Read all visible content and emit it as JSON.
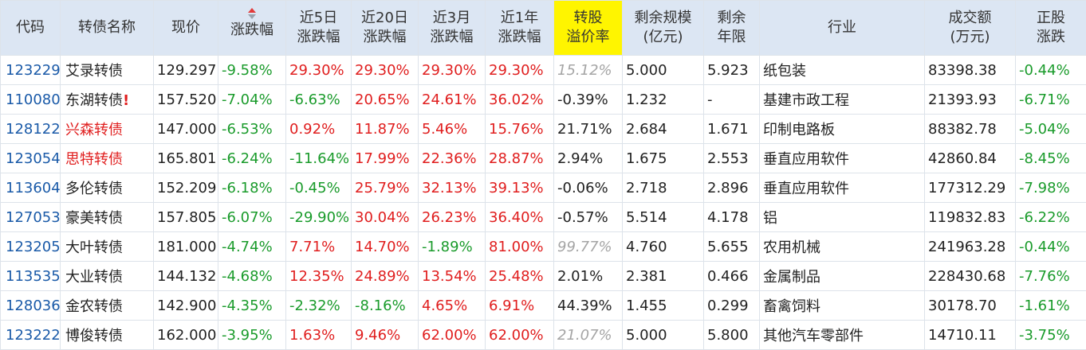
{
  "headers": {
    "code": "代码",
    "name": "转债名称",
    "price": "现价",
    "chg": "涨跌幅",
    "chg5d": [
      "近5日",
      "涨跌幅"
    ],
    "chg20d": [
      "近20日",
      "涨跌幅"
    ],
    "chg3m": [
      "近3月",
      "涨跌幅"
    ],
    "chg1y": [
      "近1年",
      "涨跌幅"
    ],
    "premium": [
      "转股",
      "溢价率"
    ],
    "scale": [
      "剩余规模",
      "(亿元)"
    ],
    "years": [
      "剩余",
      "年限"
    ],
    "industry": "行业",
    "turnover": [
      "成交额",
      "(万元)"
    ],
    "stock_chg": [
      "正股",
      "涨跌"
    ]
  },
  "rows": [
    {
      "code": "123229",
      "name": "艾录转债",
      "name_color": "normal",
      "flag": "",
      "price": "129.297",
      "chg": "-9.58%",
      "chg5d": "29.30%",
      "chg20d": "29.30%",
      "chg3m": "29.30%",
      "chg1y": "29.30%",
      "premium": "15.12%",
      "premium_style": "gray",
      "scale": "5.000",
      "years": "5.923",
      "industry": "纸包装",
      "turnover": "83398.38",
      "stock_chg": "-0.44%"
    },
    {
      "code": "110080",
      "name": "东湖转债",
      "name_color": "normal",
      "flag": "!",
      "price": "157.520",
      "chg": "-7.04%",
      "chg5d": "-6.63%",
      "chg20d": "20.65%",
      "chg3m": "24.61%",
      "chg1y": "36.02%",
      "premium": "-0.39%",
      "premium_style": "normal",
      "scale": "1.232",
      "years": "-",
      "industry": "基建市政工程",
      "turnover": "21393.93",
      "stock_chg": "-6.71%"
    },
    {
      "code": "128122",
      "name": "兴森转债",
      "name_color": "red",
      "flag": "",
      "price": "147.000",
      "chg": "-6.53%",
      "chg5d": "0.92%",
      "chg20d": "11.87%",
      "chg3m": "5.46%",
      "chg1y": "15.76%",
      "premium": "21.71%",
      "premium_style": "normal",
      "scale": "2.684",
      "years": "1.671",
      "industry": "印制电路板",
      "turnover": "88382.78",
      "stock_chg": "-5.04%"
    },
    {
      "code": "123054",
      "name": "思特转债",
      "name_color": "red",
      "flag": "",
      "price": "165.801",
      "chg": "-6.24%",
      "chg5d": "-11.64%",
      "chg20d": "17.99%",
      "chg3m": "22.36%",
      "chg1y": "28.87%",
      "premium": "2.94%",
      "premium_style": "normal",
      "scale": "1.675",
      "years": "2.553",
      "industry": "垂直应用软件",
      "turnover": "42860.84",
      "stock_chg": "-8.45%"
    },
    {
      "code": "113604",
      "name": "多伦转债",
      "name_color": "normal",
      "flag": "",
      "price": "152.209",
      "chg": "-6.18%",
      "chg5d": "-0.45%",
      "chg20d": "25.79%",
      "chg3m": "32.13%",
      "chg1y": "39.13%",
      "premium": "-0.06%",
      "premium_style": "normal",
      "scale": "2.718",
      "years": "2.896",
      "industry": "垂直应用软件",
      "turnover": "177312.29",
      "stock_chg": "-7.98%"
    },
    {
      "code": "127053",
      "name": "豪美转债",
      "name_color": "normal",
      "flag": "",
      "price": "157.805",
      "chg": "-6.07%",
      "chg5d": "-29.90%",
      "chg20d": "30.04%",
      "chg3m": "26.23%",
      "chg1y": "36.40%",
      "premium": "-0.57%",
      "premium_style": "normal",
      "scale": "5.514",
      "years": "4.178",
      "industry": "铝",
      "turnover": "119832.83",
      "stock_chg": "-6.22%"
    },
    {
      "code": "123205",
      "name": "大叶转债",
      "name_color": "normal",
      "flag": "",
      "price": "181.000",
      "chg": "-4.74%",
      "chg5d": "7.71%",
      "chg20d": "14.70%",
      "chg3m": "-1.89%",
      "chg1y": "81.00%",
      "premium": "99.77%",
      "premium_style": "gray",
      "scale": "4.760",
      "years": "5.655",
      "industry": "农用机械",
      "turnover": "241963.28",
      "stock_chg": "-0.44%"
    },
    {
      "code": "113535",
      "name": "大业转债",
      "name_color": "normal",
      "flag": "",
      "price": "144.132",
      "chg": "-4.68%",
      "chg5d": "12.35%",
      "chg20d": "24.89%",
      "chg3m": "13.54%",
      "chg1y": "25.48%",
      "premium": "2.01%",
      "premium_style": "normal",
      "scale": "2.381",
      "years": "0.466",
      "industry": "金属制品",
      "turnover": "228430.68",
      "stock_chg": "-7.76%"
    },
    {
      "code": "128036",
      "name": "金农转债",
      "name_color": "normal",
      "flag": "",
      "price": "142.900",
      "chg": "-4.35%",
      "chg5d": "-2.32%",
      "chg20d": "-8.16%",
      "chg3m": "4.65%",
      "chg1y": "6.91%",
      "premium": "44.39%",
      "premium_style": "normal",
      "scale": "1.455",
      "years": "0.299",
      "industry": "畜禽饲料",
      "turnover": "30178.70",
      "stock_chg": "-1.61%"
    },
    {
      "code": "123222",
      "name": "博俊转债",
      "name_color": "normal",
      "flag": "",
      "price": "162.000",
      "chg": "-3.95%",
      "chg5d": "1.63%",
      "chg20d": "9.46%",
      "chg3m": "62.00%",
      "chg1y": "62.00%",
      "premium": "21.07%",
      "premium_style": "gray",
      "scale": "5.000",
      "years": "5.800",
      "industry": "其他汽车零部件",
      "turnover": "14710.11",
      "stock_chg": "-3.75%"
    }
  ],
  "colors": {
    "header_bg": "#dce6f3",
    "highlight_header": "#fff500",
    "code_blue": "#1a5aa8",
    "up_red": "#e01e1e",
    "down_green": "#1a9b2b",
    "muted_gray": "#a5a5a5",
    "border": "#dde3ea"
  },
  "icons": {
    "sort": "sort-desc-arrows-icon"
  }
}
